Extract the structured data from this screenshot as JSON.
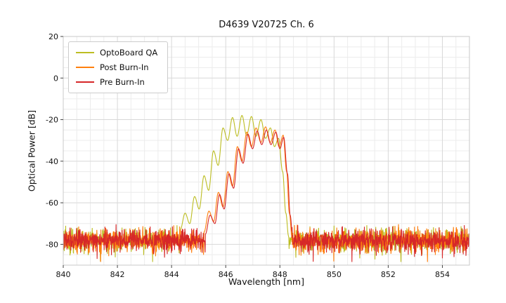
{
  "chart_data": {
    "type": "line",
    "title": "D4639 V20725 Ch. 6",
    "xlabel": "Wavelength [nm]",
    "ylabel": "Optical Power [dB]",
    "xlim": [
      840,
      855
    ],
    "ylim": [
      -90,
      20
    ],
    "xticks": [
      840,
      842,
      844,
      846,
      848,
      850,
      852,
      854
    ],
    "yticks": [
      20,
      0,
      -20,
      -40,
      -60,
      -80
    ],
    "grid": {
      "major_color": "#d8d8d8",
      "minor_color": "#ececec",
      "x_minor_step": 0.5,
      "y_minor_step": 5
    },
    "legend_position": "upper left",
    "noise_floor": {
      "base": -78,
      "spread": 8,
      "min": -88.5
    },
    "series": [
      {
        "name": "OptoBoard QA",
        "color": "#bcbd22",
        "points": [
          [
            844.32,
            -73
          ],
          [
            844.5,
            -65
          ],
          [
            844.67,
            -70
          ],
          [
            844.85,
            -57
          ],
          [
            845.02,
            -63
          ],
          [
            845.2,
            -47
          ],
          [
            845.37,
            -54
          ],
          [
            845.55,
            -35
          ],
          [
            845.72,
            -42
          ],
          [
            845.9,
            -24
          ],
          [
            846.07,
            -30
          ],
          [
            846.25,
            -19
          ],
          [
            846.42,
            -28
          ],
          [
            846.6,
            -18
          ],
          [
            846.77,
            -27.5
          ],
          [
            846.95,
            -18.5
          ],
          [
            847.12,
            -28
          ],
          [
            847.3,
            -20
          ],
          [
            847.47,
            -29
          ],
          [
            847.65,
            -24
          ],
          [
            847.8,
            -33
          ],
          [
            847.95,
            -29
          ],
          [
            848.1,
            -45
          ],
          [
            848.22,
            -65
          ],
          [
            848.32,
            -76
          ]
        ]
      },
      {
        "name": "Post Burn-In",
        "color": "#ff7f0e",
        "points": [
          [
            845.2,
            -74
          ],
          [
            845.38,
            -64
          ],
          [
            845.55,
            -69
          ],
          [
            845.73,
            -55
          ],
          [
            845.9,
            -62
          ],
          [
            846.08,
            -45
          ],
          [
            846.25,
            -52
          ],
          [
            846.43,
            -33
          ],
          [
            846.6,
            -40
          ],
          [
            846.78,
            -26
          ],
          [
            846.95,
            -33
          ],
          [
            847.12,
            -24
          ],
          [
            847.3,
            -31
          ],
          [
            847.47,
            -23.5
          ],
          [
            847.64,
            -31
          ],
          [
            847.82,
            -25
          ],
          [
            847.97,
            -33
          ],
          [
            848.12,
            -27.5
          ],
          [
            848.25,
            -45
          ],
          [
            848.35,
            -65
          ],
          [
            848.45,
            -77
          ]
        ]
      },
      {
        "name": "Pre Burn-In",
        "color": "#d62728",
        "points": [
          [
            845.25,
            -75
          ],
          [
            845.42,
            -66
          ],
          [
            845.6,
            -70
          ],
          [
            845.77,
            -56
          ],
          [
            845.94,
            -63
          ],
          [
            846.12,
            -46
          ],
          [
            846.29,
            -53
          ],
          [
            846.47,
            -34
          ],
          [
            846.64,
            -41
          ],
          [
            846.82,
            -27
          ],
          [
            846.99,
            -34
          ],
          [
            847.16,
            -25.5
          ],
          [
            847.33,
            -32
          ],
          [
            847.5,
            -25
          ],
          [
            847.67,
            -32
          ],
          [
            847.85,
            -26
          ],
          [
            848.0,
            -34
          ],
          [
            848.14,
            -28.5
          ],
          [
            848.28,
            -46
          ],
          [
            848.38,
            -66
          ],
          [
            848.48,
            -78
          ]
        ]
      }
    ]
  }
}
